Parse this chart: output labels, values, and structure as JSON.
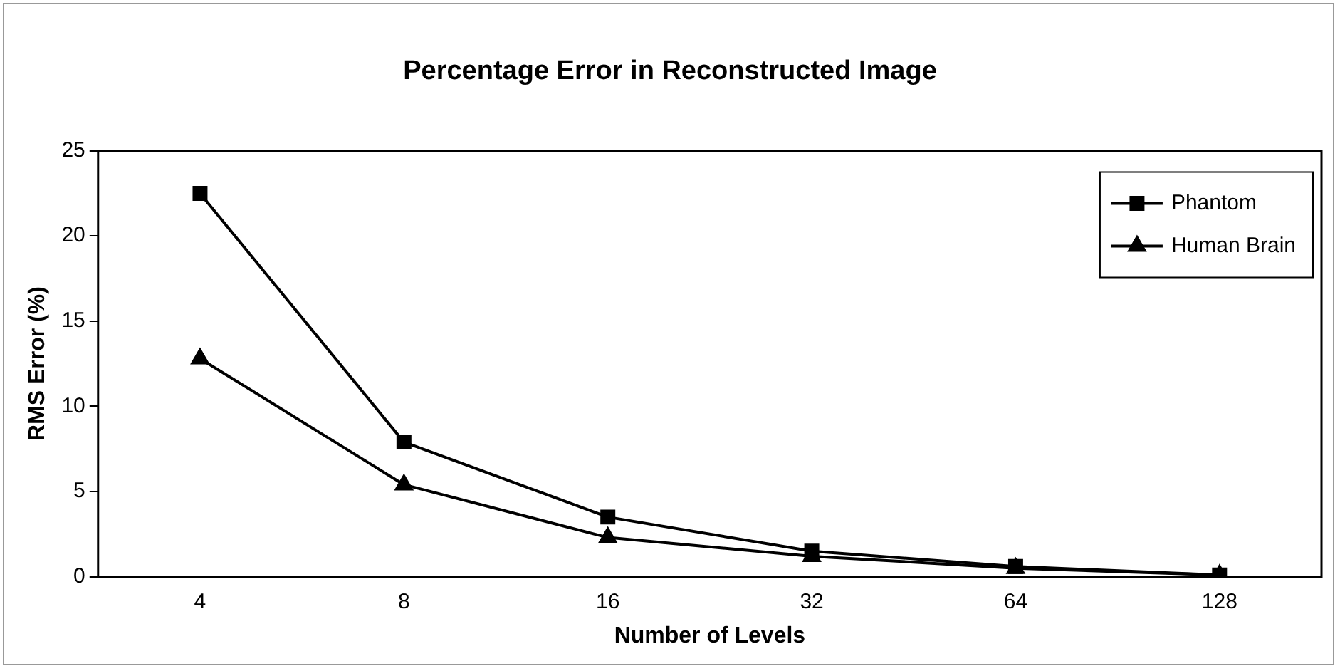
{
  "chart_data": {
    "type": "line",
    "title": "Percentage Error in Reconstructed Image",
    "xlabel": "Number of Levels",
    "ylabel": "RMS Error (%)",
    "categories": [
      "4",
      "8",
      "16",
      "32",
      "64",
      "128"
    ],
    "series": [
      {
        "name": "Phantom",
        "color": "#000000",
        "marker": "square",
        "values": [
          22.5,
          7.9,
          3.5,
          1.5,
          0.6,
          0.1
        ]
      },
      {
        "name": "Human Brain",
        "color": "#000000",
        "marker": "triangle",
        "values": [
          12.8,
          5.4,
          2.3,
          1.2,
          0.5,
          0.1
        ]
      }
    ],
    "ylim": [
      0,
      25
    ],
    "yticks": [
      0,
      5,
      10,
      15,
      20,
      25
    ],
    "grid": false,
    "legend": "top right",
    "line_style": "solid"
  }
}
